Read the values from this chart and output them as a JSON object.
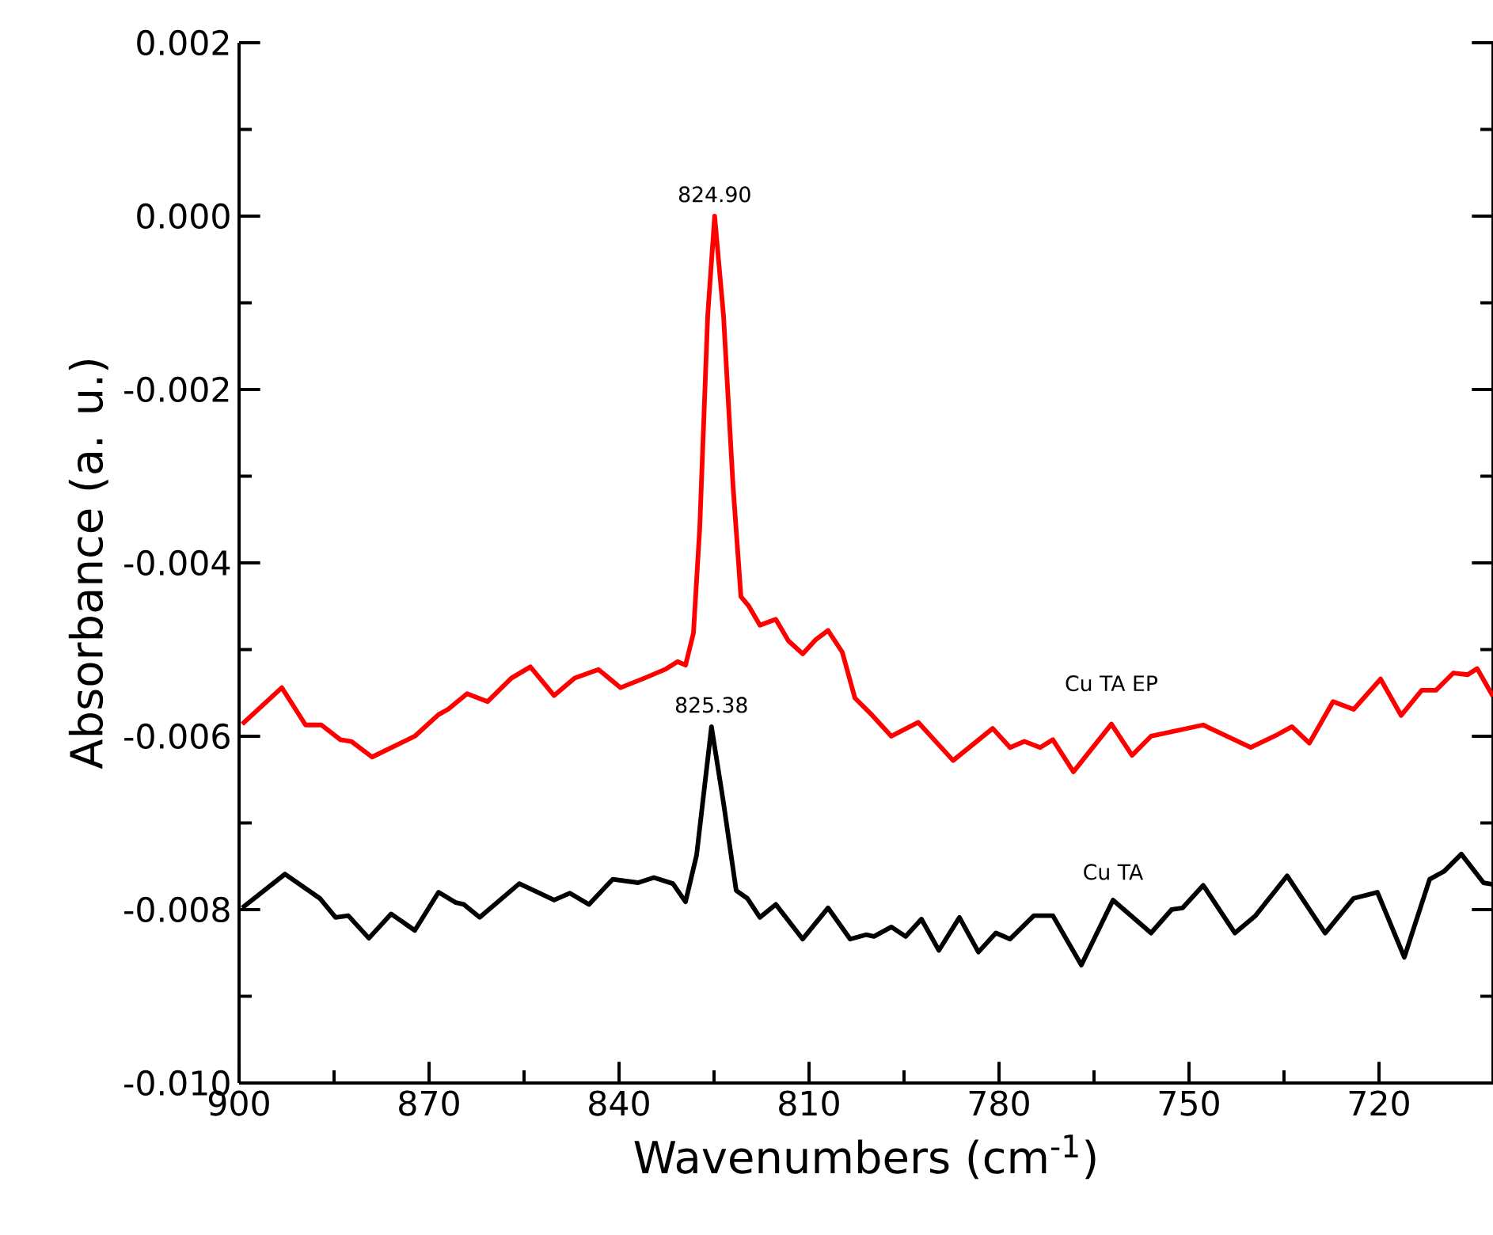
{
  "chart_data": {
    "type": "line",
    "xlabel": "Wavenumbers (cm$^{-1}$)",
    "ylabel": "Absorbance (a. u.)",
    "xlim": [
      900,
      702
    ],
    "ylim": [
      -0.01,
      0.002
    ],
    "xticks": [
      900,
      870,
      840,
      810,
      780,
      750,
      720
    ],
    "yticks": [
      {
        "value": -0.01,
        "label": "-0.010"
      },
      {
        "value": -0.008,
        "label": "-0.008"
      },
      {
        "value": -0.006,
        "label": "-0.006"
      },
      {
        "value": -0.004,
        "label": "-0.004"
      },
      {
        "value": -0.002,
        "label": "-0.002"
      },
      {
        "value": 0.0,
        "label": "0.000"
      },
      {
        "value": 0.002,
        "label": "0.002"
      }
    ],
    "series": [
      {
        "name": "Cu TA EP",
        "color": "#ff0000",
        "x": [
          899.5,
          893.25,
          889.5,
          887.0,
          884.0,
          882.25,
          879.0,
          872.25,
          868.5,
          867.0,
          864.0,
          860.75,
          857.0,
          854.0,
          850.25,
          847.0,
          843.25,
          839.75,
          836.0,
          832.75,
          830.75,
          829.5,
          828.25,
          827.25,
          826.0,
          824.9,
          823.5,
          822.0,
          820.75,
          819.5,
          817.75,
          815.25,
          813.25,
          811.0,
          809.0,
          807.0,
          804.75,
          802.75,
          800.0,
          797.0,
          792.75,
          787.25,
          781.0,
          778.25,
          776.0,
          773.5,
          771.5,
          768.25,
          762.25,
          759.0,
          756.0,
          747.75,
          740.25,
          736.0,
          733.75,
          731.0,
          727.25,
          724.0,
          719.75,
          716.5,
          713.25,
          711.0,
          708.25,
          706.0,
          704.5,
          702.0
        ],
        "values": [
          -0.00586,
          -0.00544,
          -0.00587,
          -0.00587,
          -0.00604,
          -0.00606,
          -0.00624,
          -0.006,
          -0.00575,
          -0.00569,
          -0.00551,
          -0.0056,
          -0.00533,
          -0.0052,
          -0.00553,
          -0.00533,
          -0.00523,
          -0.00544,
          -0.00533,
          -0.00523,
          -0.00514,
          -0.00518,
          -0.00481,
          -0.00359,
          -0.00115,
          0.0,
          -0.00115,
          -0.00311,
          -0.00439,
          -0.0045,
          -0.00472,
          -0.00465,
          -0.0049,
          -0.00505,
          -0.00489,
          -0.00478,
          -0.00503,
          -0.00556,
          -0.00576,
          -0.006,
          -0.00584,
          -0.00628,
          -0.00591,
          -0.00613,
          -0.00606,
          -0.00613,
          -0.00604,
          -0.00641,
          -0.00586,
          -0.00622,
          -0.006,
          -0.00587,
          -0.00613,
          -0.00598,
          -0.00589,
          -0.00608,
          -0.0056,
          -0.00569,
          -0.00534,
          -0.00576,
          -0.00547,
          -0.00547,
          -0.00527,
          -0.00529,
          -0.00522,
          -0.00554
        ]
      },
      {
        "name": "Cu TA",
        "color": "#000000",
        "x": [
          899.5,
          892.75,
          887.25,
          884.75,
          882.75,
          879.5,
          876.0,
          872.25,
          868.5,
          865.75,
          864.5,
          862.0,
          855.75,
          850.25,
          847.75,
          844.75,
          841.0,
          837.0,
          834.5,
          831.5,
          829.5,
          827.75,
          825.4,
          823.5,
          821.5,
          819.75,
          817.75,
          815.25,
          811.0,
          807.0,
          803.5,
          801.0,
          799.75,
          797.0,
          794.75,
          792.25,
          789.5,
          786.25,
          783.25,
          780.5,
          778.25,
          774.5,
          771.5,
          767.0,
          762.0,
          756.0,
          752.75,
          751.0,
          747.75,
          742.75,
          739.5,
          734.5,
          728.5,
          724.0,
          720.25,
          716.0,
          712.0,
          709.75,
          707.0,
          703.5,
          702.0
        ],
        "values": [
          -0.00798,
          -0.00759,
          -0.00787,
          -0.00809,
          -0.00807,
          -0.00833,
          -0.00805,
          -0.00824,
          -0.0078,
          -0.00792,
          -0.00794,
          -0.00809,
          -0.0077,
          -0.00789,
          -0.00781,
          -0.00794,
          -0.00765,
          -0.00769,
          -0.00763,
          -0.0077,
          -0.00791,
          -0.00737,
          -0.00589,
          -0.00677,
          -0.00778,
          -0.00787,
          -0.00809,
          -0.00794,
          -0.00834,
          -0.00798,
          -0.00834,
          -0.00829,
          -0.00831,
          -0.0082,
          -0.00831,
          -0.00811,
          -0.00847,
          -0.00809,
          -0.00849,
          -0.00827,
          -0.00834,
          -0.00807,
          -0.00807,
          -0.00864,
          -0.00789,
          -0.00827,
          -0.008,
          -0.00798,
          -0.00772,
          -0.00827,
          -0.00807,
          -0.00761,
          -0.00827,
          -0.00787,
          -0.0078,
          -0.00855,
          -0.00765,
          -0.00756,
          -0.00736,
          -0.00769,
          -0.00771
        ]
      }
    ],
    "annotations": [
      {
        "text": "824.90",
        "x": 824.9,
        "y": 0.0
      },
      {
        "text": "825.38",
        "x": 825.4,
        "y": -0.00589
      }
    ]
  }
}
